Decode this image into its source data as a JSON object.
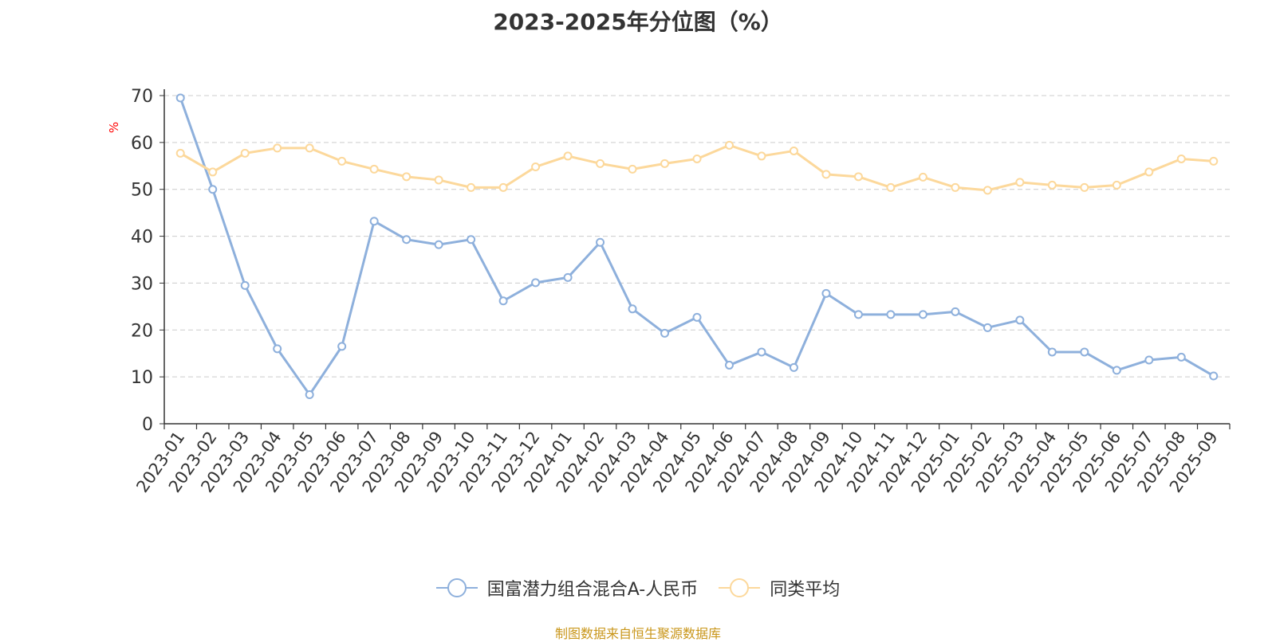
{
  "title": "2023-2025年分位图（%）",
  "source_note": "制图数据来自恒生聚源数据库",
  "colors": {
    "series1": "#8eb0dc",
    "series2": "#fcd89b",
    "grid": "#cccccc",
    "axis": "#333333",
    "unit": "#ff0000"
  },
  "chart_data": {
    "type": "line",
    "title": "2023-2025年分位图（%）",
    "ylabel": "%",
    "ylim": [
      0,
      70
    ],
    "yticks": [
      0,
      10,
      20,
      30,
      40,
      50,
      60,
      70
    ],
    "grid": true,
    "legend_position": "bottom",
    "categories": [
      "2023-01",
      "2023-02",
      "2023-03",
      "2023-04",
      "2023-05",
      "2023-06",
      "2023-07",
      "2023-08",
      "2023-09",
      "2023-10",
      "2023-11",
      "2023-12",
      "2024-01",
      "2024-02",
      "2024-03",
      "2024-04",
      "2024-05",
      "2024-06",
      "2024-07",
      "2024-08",
      "2024-09",
      "2024-10",
      "2024-11",
      "2024-12",
      "2025-01",
      "2025-02",
      "2025-03",
      "2025-04",
      "2025-05",
      "2025-06",
      "2025-07",
      "2025-08",
      "2025-09"
    ],
    "series": [
      {
        "name": "国富潜力组合混合A-人民币",
        "values": [
          69.5,
          50.0,
          29.5,
          16.0,
          6.2,
          16.5,
          43.2,
          39.3,
          38.2,
          39.3,
          26.2,
          30.1,
          31.2,
          38.7,
          24.5,
          19.3,
          22.7,
          12.5,
          15.3,
          12.0,
          27.8,
          23.3,
          23.3,
          23.3,
          23.9,
          20.5,
          22.1,
          15.3,
          15.3,
          11.4,
          13.6,
          14.2,
          10.2
        ]
      },
      {
        "name": "同类平均",
        "values": [
          57.7,
          53.7,
          57.7,
          58.8,
          58.8,
          56.0,
          54.3,
          52.7,
          52.0,
          50.4,
          50.4,
          54.8,
          57.1,
          55.5,
          54.3,
          55.5,
          56.5,
          59.4,
          57.1,
          58.2,
          53.2,
          52.7,
          50.4,
          52.6,
          50.4,
          49.8,
          51.5,
          50.9,
          50.4,
          50.9,
          53.7,
          56.5,
          56.0
        ]
      }
    ]
  }
}
